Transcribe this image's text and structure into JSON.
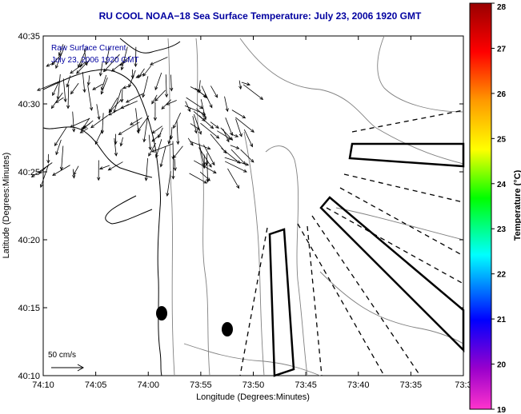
{
  "chart_data": {
    "type": "map",
    "title": "RU COOL  NOAA−18  Sea Surface Temperature:  July 23, 2006 1920 GMT",
    "xlabel": "Longitude (Degrees:Minutes)",
    "ylabel": "Latitude (Degrees:Minutes)",
    "x_ticks": [
      "74:10",
      "74:05",
      "74:00",
      "73:55",
      "73:50",
      "73:45",
      "73:40",
      "73:35",
      "73:3"
    ],
    "y_ticks": [
      "40:35",
      "40:30",
      "40:25",
      "40:20",
      "40:15",
      "40:10"
    ],
    "annotations": {
      "line1": "Raw Surface Current",
      "line2": "July 23, 2006 1920 GMT",
      "scale_label": "50 cm/s"
    },
    "colorbar": {
      "label": "Temperature (°C)",
      "ticks": [
        "28",
        "27",
        "26",
        "25",
        "24",
        "23",
        "22",
        "21",
        "20",
        "19"
      ],
      "range": [
        19,
        28
      ]
    },
    "colors": {
      "title": "#0000a0",
      "annotation": "#0000a0",
      "contour": "#808080",
      "coast": "#000000"
    }
  }
}
